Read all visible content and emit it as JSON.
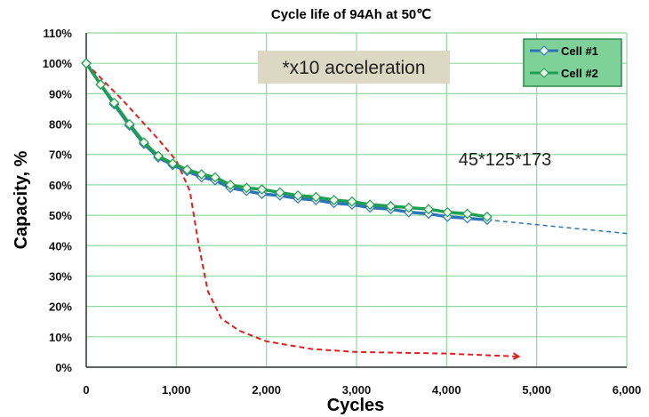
{
  "chart_data": {
    "type": "line",
    "title": "Cycle life of 94Ah at  50℃",
    "xlabel": "Cycles",
    "ylabel": "Capacity, %",
    "xlim": [
      0,
      6000
    ],
    "ylim": [
      0,
      110
    ],
    "x_ticks": [
      "0",
      "1,000",
      "2,000",
      "3,000",
      "4,000",
      "5,000",
      "6,000"
    ],
    "y_ticks": [
      "0%",
      "10%",
      "20%",
      "30%",
      "40%",
      "50%",
      "60%",
      "70%",
      "80%",
      "90%",
      "100%",
      "110%"
    ],
    "grid": true,
    "legend_position": "top-right",
    "series": [
      {
        "name": "Cell #1",
        "color": "#2e75b6",
        "x": [
          0,
          160,
          310,
          480,
          640,
          800,
          960,
          1120,
          1280,
          1430,
          1600,
          1780,
          1950,
          2150,
          2350,
          2550,
          2750,
          2950,
          3150,
          3380,
          3580,
          3800,
          4010,
          4230,
          4450
        ],
        "y": [
          100,
          93,
          86.5,
          79.5,
          73.5,
          69,
          66.5,
          64.5,
          62.5,
          61.5,
          59,
          58,
          57,
          56.5,
          55.5,
          55,
          54,
          53.5,
          52.5,
          52,
          51,
          50.5,
          49.5,
          49,
          48.5
        ]
      },
      {
        "name": "Cell #2",
        "color": "#1e9e50",
        "x": [
          0,
          160,
          310,
          480,
          640,
          800,
          960,
          1120,
          1280,
          1430,
          1600,
          1780,
          1950,
          2150,
          2350,
          2550,
          2750,
          2950,
          3150,
          3380,
          3580,
          3800,
          4010,
          4230,
          4450
        ],
        "y": [
          100,
          93,
          87,
          80,
          74,
          69.5,
          67,
          65,
          63.5,
          62.5,
          60,
          59,
          58.5,
          57.5,
          56.5,
          56,
          55,
          54.5,
          53.5,
          53,
          52.5,
          52,
          51,
          50.5,
          49.5
        ]
      }
    ],
    "extrapolation": {
      "color": "#2e75b6",
      "x": [
        4450,
        6000
      ],
      "y": [
        48.5,
        44
      ]
    },
    "comparison_curve": {
      "color": "#e02020",
      "x": [
        0,
        400,
        800,
        1000,
        1150,
        1250,
        1350,
        1500,
        1700,
        2000,
        2500,
        3000,
        4000,
        4800
      ],
      "y": [
        100,
        88,
        75,
        68,
        58,
        40,
        25,
        16,
        12,
        8.5,
        6,
        5,
        4.5,
        3.5
      ]
    },
    "annotations": [
      "*x10 acceleration",
      "45*125*173"
    ]
  }
}
